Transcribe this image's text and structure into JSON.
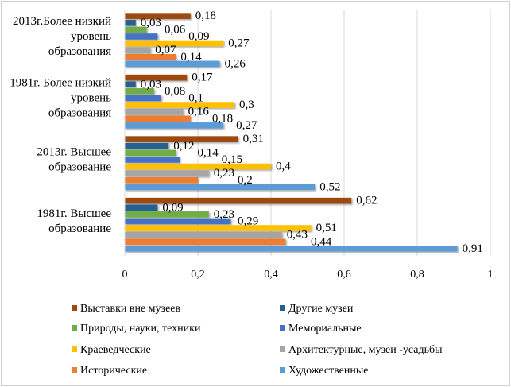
{
  "chart_data": {
    "type": "bar",
    "orientation": "horizontal",
    "categories": [
      "2013г.Более низкий уровень образования",
      "1981г.  Более низкий уровень образования",
      "2013г.   Высшее образование",
      "1981г.   Высшее образование"
    ],
    "category_lines": [
      [
        "2013г.Более низкий",
        "уровень",
        "образования"
      ],
      [
        "1981г.  Более низкий",
        "уровень",
        "образования"
      ],
      [
        "2013г.   Высшее",
        "образование"
      ],
      [
        "1981г.   Высшее",
        "образование"
      ]
    ],
    "series": [
      {
        "name": "Выставки вне музеев",
        "color": "#9E480E",
        "values": [
          0.18,
          0.17,
          0.31,
          0.62
        ],
        "labels": [
          "0,18",
          "0,17",
          "0,31",
          "0,62"
        ]
      },
      {
        "name": "Другие музеи",
        "color": "#255E91",
        "values": [
          0.03,
          0.03,
          0.12,
          0.09
        ],
        "labels": [
          "0,03",
          "0,03",
          "0,12",
          "0,09"
        ]
      },
      {
        "name": "Природы, науки, техники",
        "color": "#70AD47",
        "values": [
          0.06,
          0.08,
          0.14,
          0.23
        ],
        "labels": [
          "0,06",
          "0,08",
          "0,14",
          "0,23"
        ]
      },
      {
        "name": "Мемориальные",
        "color": "#4472C4",
        "values": [
          0.09,
          0.1,
          0.15,
          0.29
        ],
        "labels": [
          "0,09",
          "0,1",
          "0,15",
          "0,29"
        ]
      },
      {
        "name": "Краеведческие",
        "color": "#FFC000",
        "values": [
          0.27,
          0.3,
          0.4,
          0.51
        ],
        "labels": [
          "0,27",
          "0,3",
          "0,4",
          "0,51"
        ]
      },
      {
        "name": "Архитектурные, музеи -усадьбы",
        "color": "#A5A5A5",
        "values": [
          0.07,
          0.16,
          0.23,
          0.43
        ],
        "labels": [
          "0,07",
          "0,16",
          "0,23",
          "0,43"
        ]
      },
      {
        "name": "Исторические",
        "color": "#ED7D31",
        "values": [
          0.14,
          0.18,
          0.2,
          0.44
        ],
        "labels": [
          "0,14",
          "0,18",
          "0,2",
          "0,44"
        ]
      },
      {
        "name": "Художественные",
        "color": "#5B9BD5",
        "values": [
          0.26,
          0.27,
          0.52,
          0.91
        ],
        "labels": [
          "0,26",
          "0,27",
          "0,52",
          "0,91"
        ]
      }
    ],
    "xlim": [
      0,
      1
    ],
    "xticks": [
      0,
      0.2,
      0.4,
      0.6,
      0.8,
      1
    ],
    "xtick_labels": [
      "0",
      "0,2",
      "0,4",
      "0,6",
      "0,8",
      "1"
    ],
    "grid": true,
    "legend": "bottom",
    "title": "",
    "xlabel": "",
    "ylabel": ""
  }
}
